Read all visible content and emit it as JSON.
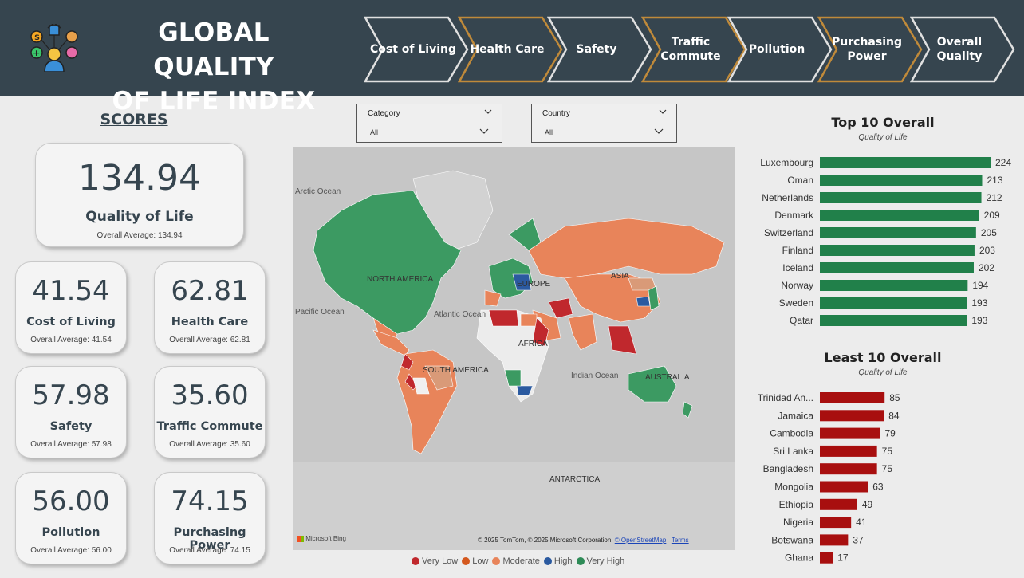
{
  "header": {
    "title": "GLOBAL QUALITY OF LIFE INDEX",
    "nav": [
      {
        "label": "Cost of Living",
        "active": false
      },
      {
        "label": "Health Care",
        "active": true
      },
      {
        "label": "Safety",
        "active": false
      },
      {
        "label": "Traffic Commute",
        "active": true
      },
      {
        "label": "Pollution",
        "active": false
      },
      {
        "label": "Purchasing Power",
        "active": true
      },
      {
        "label": "Overall Quality",
        "active": false
      }
    ]
  },
  "scores": {
    "title": "SCORES",
    "main": {
      "value": "134.94",
      "label": "Quality of Life",
      "avg": "Overall Average: 134.94"
    },
    "cards": [
      {
        "value": "41.54",
        "label": "Cost of Living",
        "avg": "Overall Average: 41.54"
      },
      {
        "value": "62.81",
        "label": "Health Care",
        "avg": "Overall Average: 62.81"
      },
      {
        "value": "57.98",
        "label": "Safety",
        "avg": "Overall Average: 57.98"
      },
      {
        "value": "35.60",
        "label": "Traffic Commute",
        "avg": "Overall Average: 35.60"
      },
      {
        "value": "56.00",
        "label": "Pollution",
        "avg": "Overall Average: 56.00"
      },
      {
        "value": "74.15",
        "label": "Purchasing Power",
        "avg": "Overall Average: 74.15"
      }
    ]
  },
  "filters": {
    "category": {
      "title": "Category",
      "value": "All"
    },
    "country": {
      "title": "Country",
      "value": "All"
    }
  },
  "map": {
    "labels": {
      "arctic": "Arctic Ocean",
      "pacific": "Pacific Ocean",
      "atlantic": "Atlantic Ocean",
      "indian": "Indian Ocean",
      "north_america": "NORTH AMERICA",
      "south_america": "SOUTH AMERICA",
      "europe": "EUROPE",
      "asia": "ASIA",
      "africa": "AFRICA",
      "australia": "AUSTRALIA",
      "antarctica": "ANTARCTICA"
    },
    "credit": "© 2025 TomTom, © 2025 Microsoft Corporation,",
    "credit_link": "© OpenStreetMap",
    "terms": "Terms",
    "provider": "Microsoft Bing",
    "legend": [
      {
        "label": "Very Low",
        "color": "#c0282d"
      },
      {
        "label": "Low",
        "color": "#d4581e"
      },
      {
        "label": "Moderate",
        "color": "#e8845a"
      },
      {
        "label": "High",
        "color": "#2b5aa0"
      },
      {
        "label": "Very High",
        "color": "#2e8b57"
      }
    ]
  },
  "chart_data": [
    {
      "type": "bar",
      "title": "Top 10 Overall",
      "subtitle": "Quality of Life",
      "color": "#21804a",
      "categories": [
        "Luxembourg",
        "Oman",
        "Netherlands",
        "Denmark",
        "Switzerland",
        "Finland",
        "Iceland",
        "Norway",
        "Sweden",
        "Qatar"
      ],
      "values": [
        224,
        213,
        212,
        209,
        205,
        203,
        202,
        194,
        193,
        193
      ]
    },
    {
      "type": "bar",
      "title": "Least 10 Overall",
      "subtitle": "Quality of Life",
      "color": "#a80f0f",
      "categories": [
        "Trinidad An...",
        "Jamaica",
        "Cambodia",
        "Sri Lanka",
        "Bangladesh",
        "Mongolia",
        "Ethiopia",
        "Nigeria",
        "Botswana",
        "Ghana"
      ],
      "values": [
        85,
        84,
        79,
        75,
        75,
        63,
        49,
        41,
        37,
        17
      ]
    }
  ]
}
